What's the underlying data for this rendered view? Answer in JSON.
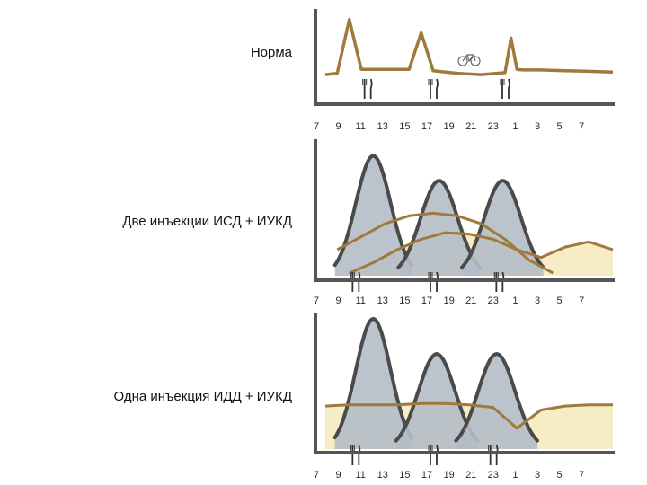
{
  "chart_data": [
    {
      "type": "line",
      "title": "Норма",
      "x_ticks": [
        "7",
        "9",
        "11",
        "13",
        "15",
        "17",
        "19",
        "21",
        "23",
        "1",
        "3",
        "5",
        "7"
      ],
      "xlim": [
        7,
        31
      ],
      "ylim": [
        0,
        100
      ],
      "series": [
        {
          "name": "",
          "color": "#a07a3c",
          "x": [
            7,
            8,
            9,
            10,
            11,
            13,
            14,
            15,
            16,
            18,
            20,
            22,
            22.5,
            23,
            23.5,
            25,
            27,
            29,
            31
          ],
          "y": [
            12,
            14,
            95,
            20,
            20,
            20,
            20,
            75,
            18,
            14,
            12,
            15,
            67,
            20,
            19,
            19,
            18,
            17,
            16
          ]
        }
      ],
      "meal_markers_x": [
        10.5,
        16,
        22
      ],
      "activity_marker_x": 19
    },
    {
      "type": "area",
      "title": "Две инъекции ИСД + ИУКД",
      "x_ticks": [
        "7",
        "9",
        "11",
        "13",
        "15",
        "17",
        "19",
        "21",
        "23",
        "1",
        "3",
        "5",
        "7"
      ],
      "xlim": [
        7,
        31
      ],
      "ylim": [
        0,
        100
      ],
      "insulin_peaks": [
        {
          "center": 11,
          "width": 3.2,
          "height": 92
        },
        {
          "center": 16.5,
          "width": 3.4,
          "height": 73
        },
        {
          "center": 21.8,
          "width": 3.4,
          "height": 73
        }
      ],
      "series": [
        {
          "name": "",
          "color": "#a07a3c",
          "x": [
            8,
            10,
            12,
            14,
            16,
            18,
            20,
            22,
            24,
            26
          ],
          "y": [
            20,
            30,
            40,
            46,
            48,
            46,
            40,
            28,
            12,
            2
          ]
        },
        {
          "name": "",
          "color": "#a07a3c",
          "x": [
            9,
            11,
            13,
            15,
            17,
            19,
            21,
            23,
            25,
            27,
            29,
            31
          ],
          "y": [
            2,
            10,
            20,
            28,
            33,
            32,
            28,
            20,
            14,
            22,
            26,
            20
          ]
        }
      ],
      "meal_markers_x": [
        9.5,
        16,
        21.5
      ]
    },
    {
      "type": "area",
      "title": "Одна инъекция ИДД + ИУКД",
      "x_ticks": [
        "7",
        "9",
        "11",
        "13",
        "15",
        "17",
        "19",
        "21",
        "23",
        "1",
        "3",
        "5",
        "7"
      ],
      "xlim": [
        7,
        31
      ],
      "ylim": [
        0,
        100
      ],
      "insulin_peaks": [
        {
          "center": 11,
          "width": 3.2,
          "height": 100
        },
        {
          "center": 16.3,
          "width": 3.4,
          "height": 73
        },
        {
          "center": 21.3,
          "width": 3.4,
          "height": 73
        }
      ],
      "series": [
        {
          "name": "",
          "color": "#a07a3c",
          "x": [
            7,
            9,
            11,
            13,
            15,
            17,
            19,
            21,
            23,
            25,
            27,
            29,
            31
          ],
          "y": [
            33,
            34,
            34,
            34,
            35,
            35,
            34,
            32,
            16,
            30,
            33,
            34,
            34
          ]
        }
      ],
      "meal_markers_x": [
        9.5,
        16,
        21
      ]
    }
  ],
  "colors": {
    "glucose_line": "#a07a3c",
    "insulin_fill": "#b4bcc7",
    "insulin_stroke": "#4a4a4a",
    "glucose_area": "#f6ecc6",
    "axis": "#555555"
  },
  "icons": {
    "meal": "fork-knife-icon",
    "activity": "bicycle-icon"
  }
}
